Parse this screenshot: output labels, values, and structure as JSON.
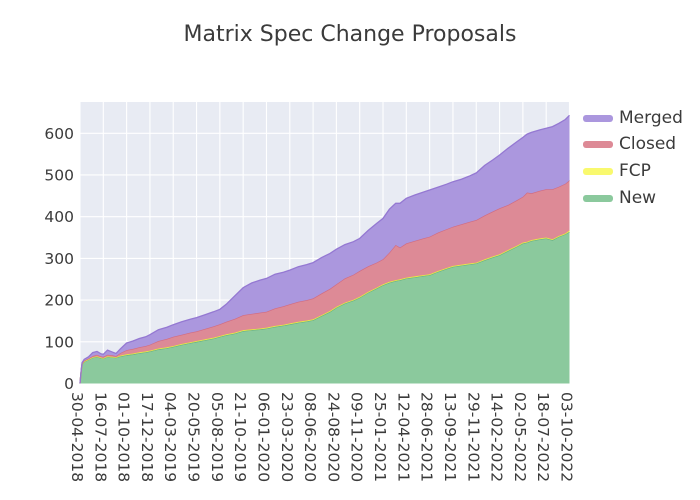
{
  "chart_data": {
    "type": "area",
    "stacked": true,
    "title": "Matrix Spec Change Proposals",
    "xlabel": "",
    "ylabel": "",
    "y_max": 675,
    "y_ticks": [
      0,
      100,
      200,
      300,
      400,
      500,
      600
    ],
    "x_range_days": [
      0,
      1617
    ],
    "x_tick_days": [
      0,
      77,
      154,
      231,
      308,
      385,
      462,
      539,
      616,
      693,
      770,
      847,
      924,
      1001,
      1078,
      1155,
      1232,
      1309,
      1386,
      1463,
      1540,
      1617
    ],
    "x_tick_labels": [
      "30-04-2018",
      "16-07-2018",
      "01-10-2018",
      "17-12-2018",
      "04-03-2019",
      "20-05-2019",
      "05-08-2019",
      "21-10-2019",
      "06-01-2020",
      "23-03-2020",
      "08-06-2020",
      "24-08-2020",
      "09-11-2020",
      "25-01-2021",
      "12-04-2021",
      "28-06-2021",
      "13-09-2021",
      "29-11-2021",
      "14-02-2022",
      "02-05-2022",
      "18-07-2022",
      "03-10-2022"
    ],
    "grid": true,
    "legend_position": "outside-right",
    "colors": {
      "plot_bg": "#e8ebf3",
      "grid": "#ffffff",
      "text": "#3b3b3b"
    },
    "series": [
      {
        "name": "Merged",
        "key": "merged",
        "color": "#ab97de",
        "edge": "#9478d2"
      },
      {
        "name": "Closed",
        "key": "closed",
        "color": "#dd8a96",
        "edge": "#d26b80"
      },
      {
        "name": "FCP",
        "key": "fcp",
        "color": "#f9f96e",
        "edge": "#e9e43d"
      },
      {
        "name": "New",
        "key": "new",
        "color": "#8bc99d",
        "edge": "#66b083"
      }
    ],
    "stack_order_bottom_to_top": [
      "new",
      "fcp",
      "closed",
      "merged"
    ],
    "samples_columns": [
      "day",
      "new",
      "fcp",
      "closed",
      "merged"
    ],
    "samples": [
      [
        0,
        0,
        0,
        0,
        0
      ],
      [
        4,
        30,
        0,
        1,
        1
      ],
      [
        7,
        46,
        1,
        1,
        2
      ],
      [
        14,
        52,
        1,
        2,
        3
      ],
      [
        28,
        57,
        1,
        2,
        4
      ],
      [
        42,
        62,
        1,
        3,
        8
      ],
      [
        56,
        64,
        1,
        4,
        8
      ],
      [
        70,
        61,
        1,
        3,
        6
      ],
      [
        77,
        60,
        1,
        3,
        6
      ],
      [
        91,
        64,
        1,
        4,
        11
      ],
      [
        105,
        63,
        1,
        4,
        8
      ],
      [
        119,
        62,
        1,
        3,
        6
      ],
      [
        133,
        65,
        2,
        6,
        10
      ],
      [
        154,
        68,
        2,
        10,
        17
      ],
      [
        175,
        70,
        2,
        11,
        19
      ],
      [
        196,
        73,
        2,
        12,
        21
      ],
      [
        217,
        75,
        2,
        13,
        22
      ],
      [
        231,
        77,
        2,
        14,
        24
      ],
      [
        259,
        82,
        2,
        18,
        27
      ],
      [
        287,
        85,
        2,
        20,
        28
      ],
      [
        308,
        88,
        2,
        22,
        29
      ],
      [
        336,
        93,
        2,
        22,
        31
      ],
      [
        364,
        97,
        2,
        23,
        32
      ],
      [
        385,
        100,
        2,
        23,
        33
      ],
      [
        413,
        104,
        2,
        25,
        34
      ],
      [
        441,
        108,
        2,
        27,
        35
      ],
      [
        462,
        112,
        2,
        28,
        36
      ],
      [
        483,
        116,
        2,
        30,
        42
      ],
      [
        511,
        120,
        2,
        33,
        55
      ],
      [
        539,
        126,
        2,
        36,
        66
      ],
      [
        567,
        128,
        2,
        37,
        74
      ],
      [
        595,
        130,
        2,
        38,
        78
      ],
      [
        616,
        132,
        2,
        38,
        80
      ],
      [
        644,
        136,
        2,
        42,
        82
      ],
      [
        672,
        139,
        2,
        44,
        82
      ],
      [
        693,
        142,
        2,
        46,
        82
      ],
      [
        721,
        146,
        2,
        48,
        84
      ],
      [
        749,
        149,
        2,
        49,
        85
      ],
      [
        770,
        152,
        2,
        50,
        86
      ],
      [
        798,
        162,
        2,
        52,
        86
      ],
      [
        826,
        172,
        2,
        53,
        85
      ],
      [
        847,
        182,
        2,
        54,
        84
      ],
      [
        875,
        192,
        2,
        58,
        81
      ],
      [
        903,
        199,
        2,
        60,
        79
      ],
      [
        924,
        206,
        2,
        62,
        78
      ],
      [
        952,
        218,
        2,
        61,
        86
      ],
      [
        980,
        228,
        2,
        60,
        94
      ],
      [
        1001,
        236,
        2,
        60,
        98
      ],
      [
        1022,
        242,
        2,
        70,
        104
      ],
      [
        1043,
        246,
        2,
        84,
        100
      ],
      [
        1057,
        248,
        2,
        76,
        106
      ],
      [
        1078,
        252,
        2,
        82,
        108
      ],
      [
        1106,
        255,
        2,
        85,
        110
      ],
      [
        1134,
        258,
        2,
        88,
        111
      ],
      [
        1155,
        260,
        2,
        90,
        112
      ],
      [
        1183,
        268,
        2,
        92,
        109
      ],
      [
        1211,
        275,
        2,
        93,
        108
      ],
      [
        1232,
        280,
        2,
        94,
        108
      ],
      [
        1260,
        283,
        2,
        97,
        108
      ],
      [
        1288,
        286,
        2,
        100,
        110
      ],
      [
        1309,
        288,
        2,
        102,
        113
      ],
      [
        1337,
        296,
        2,
        105,
        120
      ],
      [
        1365,
        303,
        2,
        108,
        124
      ],
      [
        1386,
        308,
        2,
        110,
        128
      ],
      [
        1414,
        318,
        2,
        108,
        136
      ],
      [
        1442,
        328,
        2,
        109,
        140
      ],
      [
        1463,
        336,
        2,
        110,
        142
      ],
      [
        1477,
        338,
        2,
        118,
        140
      ],
      [
        1491,
        342,
        2,
        112,
        146
      ],
      [
        1519,
        346,
        2,
        114,
        146
      ],
      [
        1540,
        348,
        2,
        116,
        146
      ],
      [
        1561,
        344,
        2,
        120,
        150
      ],
      [
        1582,
        352,
        2,
        118,
        152
      ],
      [
        1603,
        358,
        2,
        119,
        154
      ],
      [
        1617,
        364,
        3,
        120,
        156
      ]
    ]
  }
}
